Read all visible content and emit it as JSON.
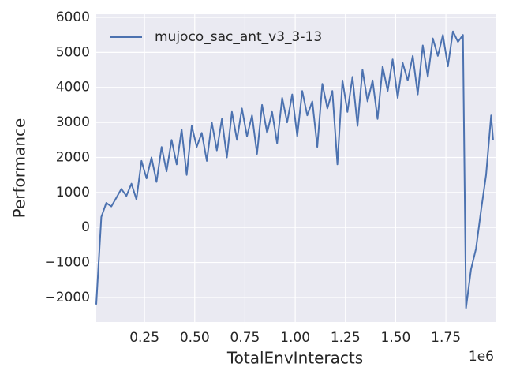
{
  "chart_data": {
    "type": "line",
    "xlabel": "TotalEnvInteracts",
    "ylabel": "Performance",
    "x_offset_label": "1e6",
    "x": [
      10000,
      35000,
      60000,
      85000,
      110000,
      135000,
      160000,
      185000,
      210000,
      235000,
      260000,
      285000,
      310000,
      335000,
      360000,
      385000,
      410000,
      435000,
      460000,
      485000,
      510000,
      535000,
      560000,
      585000,
      610000,
      635000,
      660000,
      685000,
      710000,
      735000,
      760000,
      785000,
      810000,
      835000,
      860000,
      885000,
      910000,
      935000,
      960000,
      985000,
      1010000,
      1035000,
      1060000,
      1085000,
      1110000,
      1135000,
      1160000,
      1185000,
      1210000,
      1235000,
      1260000,
      1285000,
      1310000,
      1335000,
      1360000,
      1385000,
      1410000,
      1435000,
      1460000,
      1485000,
      1510000,
      1535000,
      1560000,
      1585000,
      1610000,
      1635000,
      1660000,
      1685000,
      1710000,
      1735000,
      1760000,
      1785000,
      1810000,
      1835000,
      1850000,
      1875000,
      1900000,
      1925000,
      1950000,
      1975000,
      1985000
    ],
    "series": [
      {
        "name": "mujoco_sac_ant_v3_3-13",
        "color": "#4c72b0",
        "values": [
          -2200,
          300,
          700,
          600,
          850,
          1100,
          900,
          1250,
          800,
          1900,
          1400,
          2000,
          1300,
          2300,
          1600,
          2500,
          1800,
          2800,
          1500,
          2900,
          2300,
          2700,
          1900,
          3000,
          2200,
          3100,
          2000,
          3300,
          2500,
          3400,
          2600,
          3200,
          2100,
          3500,
          2700,
          3300,
          2400,
          3700,
          3000,
          3800,
          2600,
          3900,
          3200,
          3600,
          2300,
          4100,
          3400,
          3900,
          1800,
          4200,
          3300,
          4300,
          2900,
          4500,
          3600,
          4200,
          3100,
          4600,
          3900,
          4800,
          3700,
          4700,
          4200,
          4900,
          3800,
          5200,
          4300,
          5400,
          4900,
          5500,
          4600,
          5600,
          5300,
          5500,
          -2300,
          -1200,
          -600,
          500,
          1500,
          3200,
          2500
        ]
      }
    ],
    "xlim": [
      10000,
      1997000
    ],
    "xticks": [
      {
        "value": 250000,
        "label": "0.25"
      },
      {
        "value": 500000,
        "label": "0.50"
      },
      {
        "value": 750000,
        "label": "0.75"
      },
      {
        "value": 1000000,
        "label": "1.00"
      },
      {
        "value": 1250000,
        "label": "1.25"
      },
      {
        "value": 1500000,
        "label": "1.50"
      },
      {
        "value": 1750000,
        "label": "1.75"
      }
    ],
    "ylim": [
      -2700,
      6090
    ],
    "yticks": [
      {
        "value": -2000,
        "label": "−2000"
      },
      {
        "value": -1000,
        "label": "−1000"
      },
      0,
      1000,
      2000,
      3000,
      4000,
      5000,
      6000
    ],
    "grid": true,
    "legend": "upper-left"
  }
}
